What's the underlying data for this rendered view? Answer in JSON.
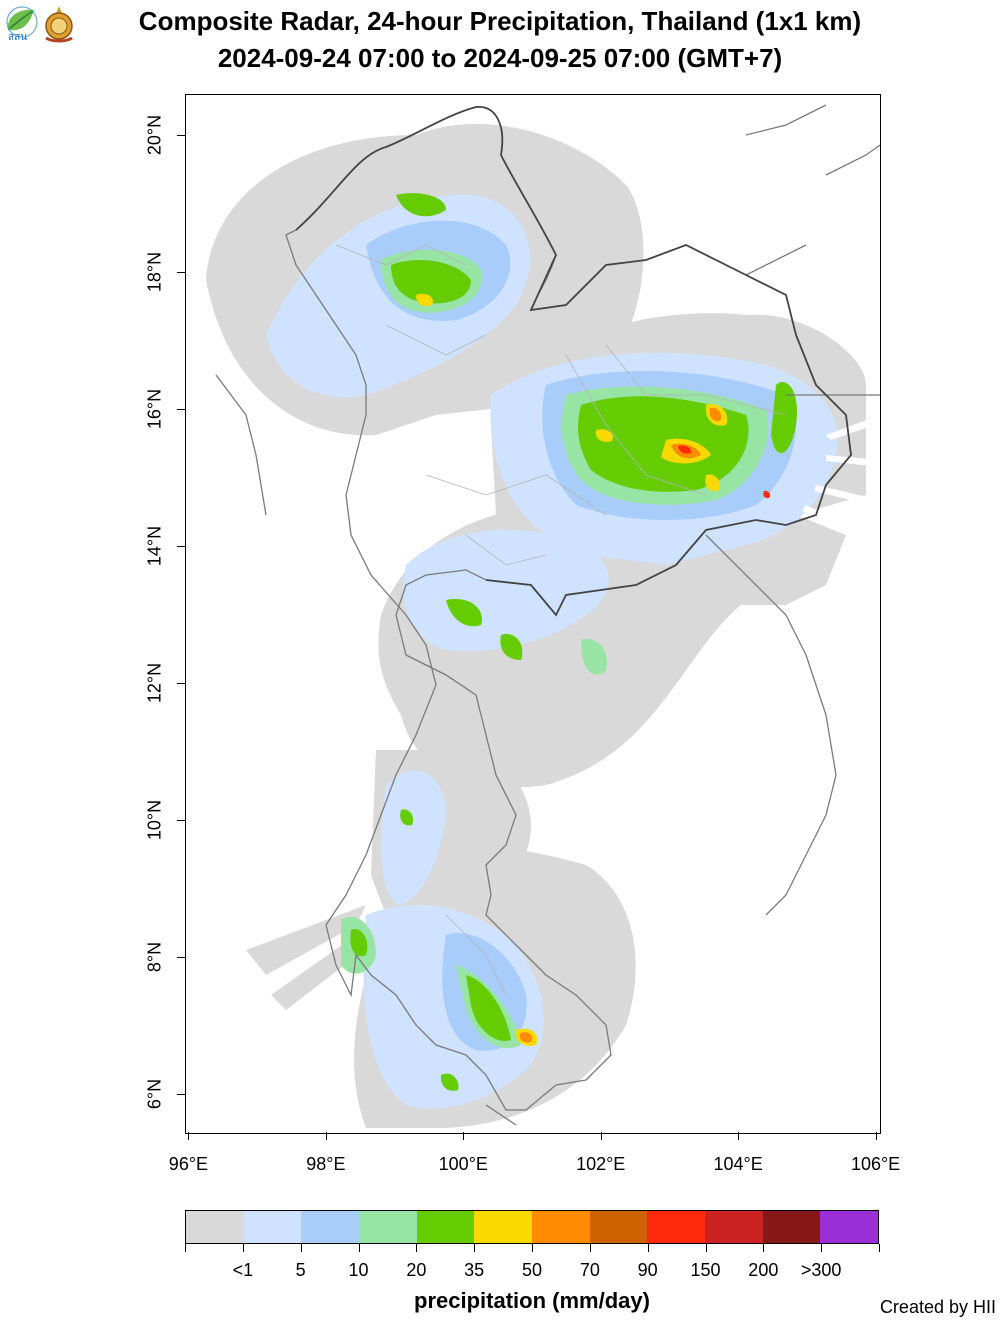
{
  "title_line1": "Composite Radar, 24-hour Precipitation, Thailand (1x1 km)",
  "title_line2": "2024-09-24 07:00 to 2024-09-25 07:00 (GMT+7)",
  "x_tick_labels": [
    "96°E",
    "98°E",
    "100°E",
    "102°E",
    "104°E",
    "106°E"
  ],
  "y_tick_labels": [
    "6°N",
    "8°N",
    "10°N",
    "12°N",
    "14°N",
    "16°N",
    "18°N",
    "20°N"
  ],
  "map_extent": {
    "lon": [
      95.95,
      106.05
    ],
    "lat": [
      5.45,
      20.6
    ]
  },
  "legend": {
    "title": "precipitation (mm/day)",
    "labels": [
      "<1",
      "5",
      "10",
      "20",
      "35",
      "50",
      "70",
      "90",
      "150",
      "200",
      ">300"
    ],
    "colors": [
      "#d9d9d9",
      "#cfe2ff",
      "#a9cdfb",
      "#98e4a4",
      "#64cc00",
      "#fad900",
      "#ff8c00",
      "#cf6200",
      "#ff2a0e",
      "#cc2222",
      "#881818",
      "#9b30d8"
    ]
  },
  "credit": "Created by HII",
  "logos": {
    "hii": "hii-leaf-logo",
    "seal": "royal-seal-logo",
    "hii_text": "สสน"
  }
}
